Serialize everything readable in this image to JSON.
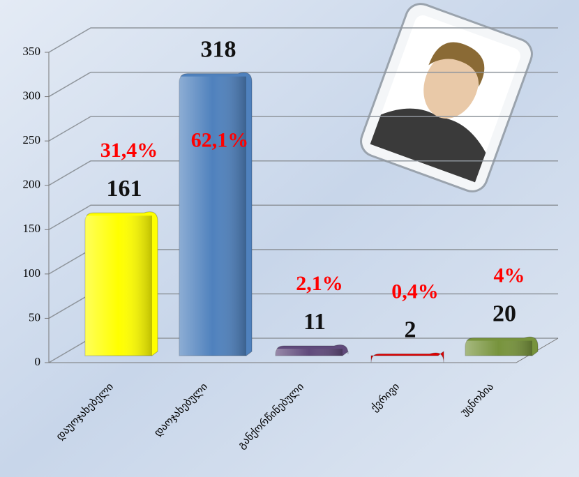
{
  "chart_data": {
    "type": "bar3d",
    "categories": [
      "დაუოჯახებელი",
      "დაოჯახებული",
      "განქორწინებული",
      "ქვრივი",
      "უცნობია"
    ],
    "values": [
      161,
      318,
      11,
      2,
      20
    ],
    "colors": [
      "#ffff00",
      "#4f81bd",
      "#604a7b",
      "#e00000",
      "#77933c"
    ],
    "annotations": [
      "31,4%",
      "62,1%",
      "2,1%",
      "0,4%",
      "4%"
    ],
    "ylim": [
      0,
      350
    ],
    "yticks": [
      0,
      50,
      100,
      150,
      200,
      250,
      300,
      350
    ],
    "grid": true
  }
}
